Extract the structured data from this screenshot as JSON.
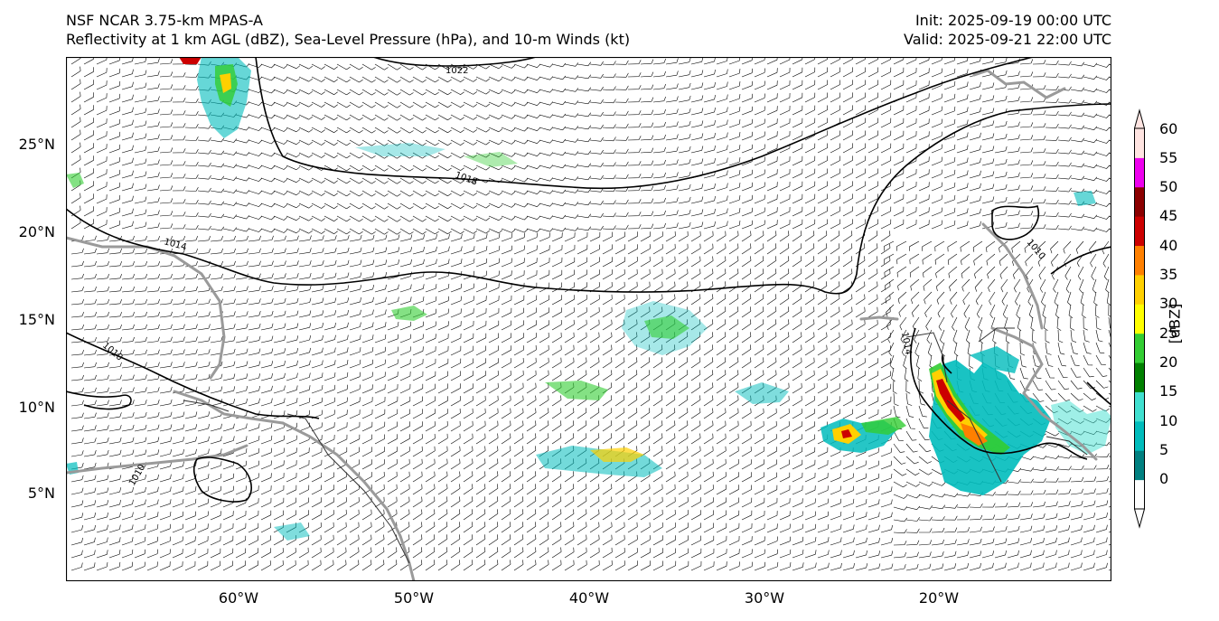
{
  "header": {
    "left_line1": "NSF NCAR 3.75-km MPAS-A",
    "left_line2": "Reflectivity at 1 km AGL (dBZ), Sea-Level Pressure (hPa), and 10-m Winds (kt)",
    "right_line1": "Init: 2025-09-19 00:00 UTC",
    "right_line2": "Valid: 2025-09-21 22:00 UTC"
  },
  "map": {
    "lon_range": [
      -70,
      -10.5
    ],
    "lat_range": [
      0,
      29.5
    ],
    "lat_ticks": [
      "25°N",
      "20°N",
      "15°N",
      "10°N",
      "5°N"
    ],
    "lon_ticks": [
      "60°W",
      "50°W",
      "40°W",
      "30°W",
      "20°W"
    ],
    "isobar_labels": [
      "1022",
      "1018",
      "1014",
      "1014",
      "1010",
      "1010",
      "1010"
    ],
    "colors": {
      "coastline": "#9a9a9a",
      "isobar": "#000000",
      "barb": "#000000"
    }
  },
  "colorbar": {
    "label": "[dBZ]",
    "ticks": [
      "0",
      "5",
      "10",
      "15",
      "20",
      "25",
      "30",
      "35",
      "40",
      "45",
      "50",
      "55",
      "60"
    ],
    "colors": [
      "#ffffff",
      "#008080",
      "#00bcbc",
      "#40e0d0",
      "#008000",
      "#32cd32",
      "#ffff00",
      "#ffd000",
      "#ff8000",
      "#cc0000",
      "#8b0000",
      "#ee00ee",
      "#ffe4e1"
    ]
  }
}
